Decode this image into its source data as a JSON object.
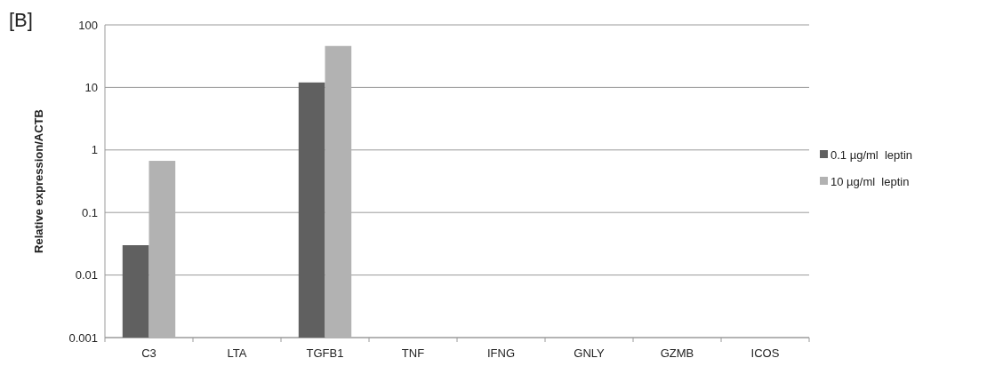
{
  "chart_data": {
    "type": "bar",
    "ylabel": "Relative expression/ACTB",
    "annotations": [
      "[B]"
    ],
    "categories": [
      "C3",
      "LTA",
      "TGFB1",
      "TNF",
      "IFNG",
      "GNLY",
      "GZMB",
      "ICOS"
    ],
    "series": [
      {
        "name": "0.1 µg/ml  leptin",
        "color": "#606060",
        "values": [
          0.03,
          null,
          12,
          null,
          null,
          null,
          null,
          null
        ]
      },
      {
        "name": "10 µg/ml  leptin",
        "color": "#b2b2b2",
        "values": [
          0.67,
          null,
          46,
          null,
          null,
          null,
          null,
          null
        ]
      }
    ],
    "log": true,
    "ylim": [
      0.001,
      100
    ],
    "yticks": [
      0.001,
      0.01,
      0.1,
      1,
      10,
      100
    ],
    "grid": "y",
    "legend": "right"
  }
}
